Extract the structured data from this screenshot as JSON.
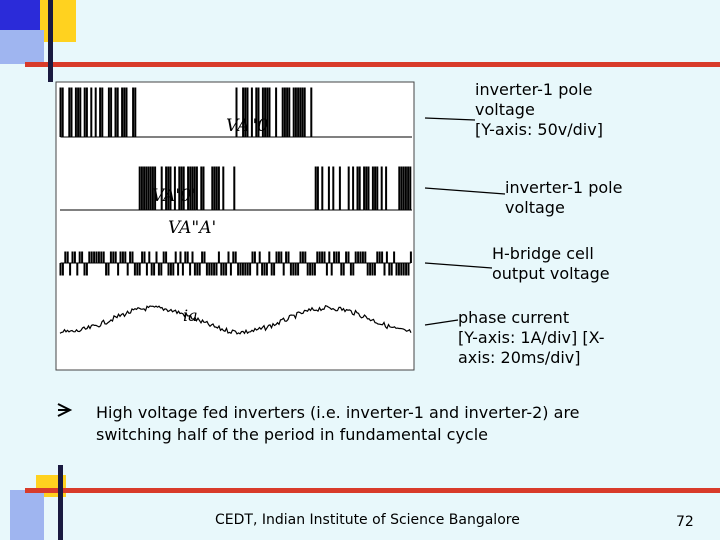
{
  "annotations": [
    {
      "lines": [
        "inverter-1 pole",
        "voltage",
        "[Y-axis: 50v/div]"
      ]
    },
    {
      "lines": [
        "inverter-1 pole",
        "voltage"
      ]
    },
    {
      "lines": [
        "H-bridge cell",
        "output voltage"
      ]
    },
    {
      "lines": [
        "phase current",
        "[Y-axis: 1A/div] [X-",
        "axis: 20ms/div]"
      ]
    }
  ],
  "traces": [
    "VA\"0",
    "VA'0'",
    "VA\"A'",
    "ia"
  ],
  "bullet": {
    "lines": [
      "High voltage fed inverters (i.e. inverter-1 and inverter-2) are",
      "switching half of the period in fundamental cycle"
    ]
  },
  "footer": "CEDT, Indian Institute of Science Bangalore",
  "page_number": "72"
}
